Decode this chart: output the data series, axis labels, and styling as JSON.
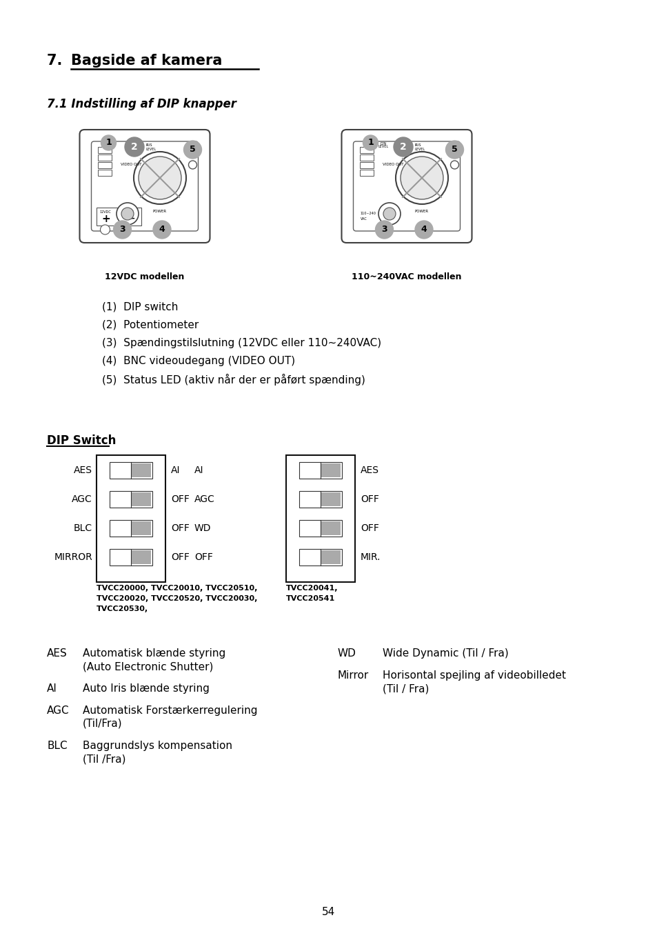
{
  "title_prefix": "7.  ",
  "title_underlined": "Bagside af kamera",
  "subtitle": "7.1 Indstilling af DIP knapper",
  "caption_left": "12VDC modellen",
  "caption_right": "110~240VAC modellen",
  "numbered_list": [
    "(1)  DIP switch",
    "(2)  Potentiometer",
    "(3)  Spændingstilslutning (12VDC eller 110~240VAC)",
    "(4)  BNC videoudegang (VIDEO OUT)",
    "(5)  Status LED (aktiv når der er påført spænding)"
  ],
  "dip_switch_title": "DIP Switch",
  "dip_left_labels": [
    "AES",
    "AGC",
    "BLC",
    "MIRROR"
  ],
  "dip_left_col1": [
    "AI",
    "OFF",
    "OFF",
    "OFF"
  ],
  "dip_left_col2": [
    "AI",
    "AGC",
    "WD",
    "OFF"
  ],
  "dip_right_labels": [
    "AES",
    "OFF",
    "OFF",
    "MIR."
  ],
  "caption_models_left": "TVCC20000, TVCC20010, TVCC20510,\nTVCC20020, TVCC20520, TVCC20030,\nTVCC20530,",
  "caption_models_right": "TVCC20041,\nTVCC20541",
  "glossary_left": [
    [
      "AES",
      "Automatisk blænde styring",
      "(Auto Electronic Shutter)"
    ],
    [
      "AI",
      "Auto Iris blænde styring",
      ""
    ],
    [
      "AGC",
      "Automatisk Forstærkerregulering",
      "(Til/Fra)"
    ],
    [
      "BLC",
      "Baggrundslys kompensation",
      "(Til /Fra)"
    ]
  ],
  "glossary_right": [
    [
      "WD",
      "Wide Dynamic (Til / Fra)",
      ""
    ],
    [
      "Mirror",
      "Horisontal spejling af videobilledet",
      "(Til / Fra)"
    ]
  ],
  "page_number": "54",
  "bg_color": "#ffffff",
  "text_color": "#000000",
  "gray_color": "#aaaaaa",
  "dark_gray": "#888888"
}
